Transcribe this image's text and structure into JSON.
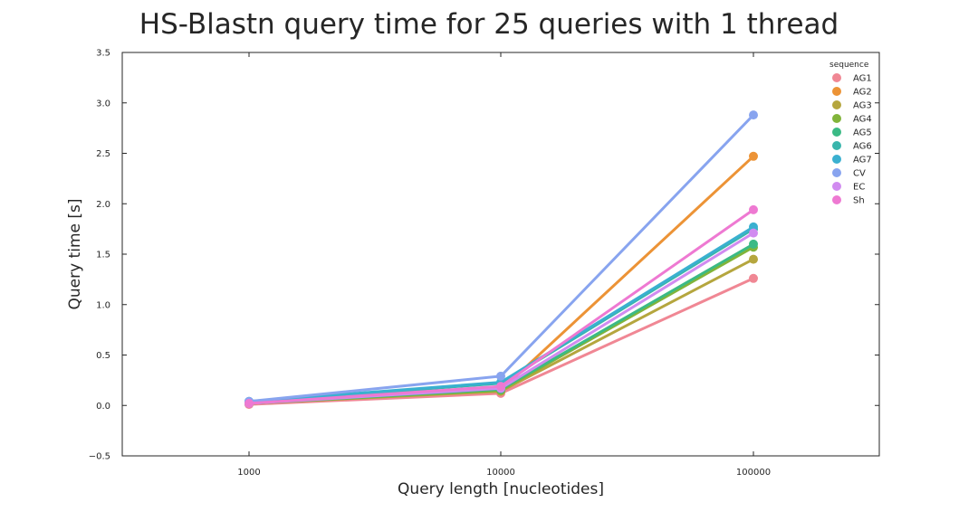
{
  "chart_data": {
    "type": "line",
    "title": "HS-Blastn query time for 25 queries with 1 thread",
    "xlabel": "Query length [nucleotides]",
    "ylabel": "Query time [s]",
    "categories": [
      "1000",
      "10000",
      "100000"
    ],
    "ylim": [
      -0.5,
      3.5
    ],
    "yticks": [
      "−0.5",
      "0.0",
      "0.5",
      "1.0",
      "1.5",
      "2.0",
      "2.5",
      "3.0",
      "3.5"
    ],
    "grid": false,
    "legend": {
      "title": "sequence",
      "position": "top-right"
    },
    "series": [
      {
        "name": "AG1",
        "color": "#f08794",
        "values": [
          0.01,
          0.12,
          1.26
        ]
      },
      {
        "name": "AG2",
        "color": "#ec9336",
        "values": [
          0.02,
          0.15,
          2.47
        ]
      },
      {
        "name": "AG3",
        "color": "#b5a63e",
        "values": [
          0.02,
          0.14,
          1.45
        ]
      },
      {
        "name": "AG4",
        "color": "#81b43a",
        "values": [
          0.02,
          0.15,
          1.57
        ]
      },
      {
        "name": "AG5",
        "color": "#3bba85",
        "values": [
          0.02,
          0.16,
          1.6
        ]
      },
      {
        "name": "AG6",
        "color": "#39b5ac",
        "values": [
          0.03,
          0.22,
          1.75
        ]
      },
      {
        "name": "AG7",
        "color": "#3ab0d0",
        "values": [
          0.04,
          0.23,
          1.77
        ]
      },
      {
        "name": "CV",
        "color": "#88a4ef",
        "values": [
          0.04,
          0.29,
          2.88
        ]
      },
      {
        "name": "EC",
        "color": "#d18bf0",
        "values": [
          0.02,
          0.17,
          1.71
        ]
      },
      {
        "name": "Sh",
        "color": "#ee79d2",
        "values": [
          0.02,
          0.19,
          1.94
        ]
      }
    ]
  }
}
